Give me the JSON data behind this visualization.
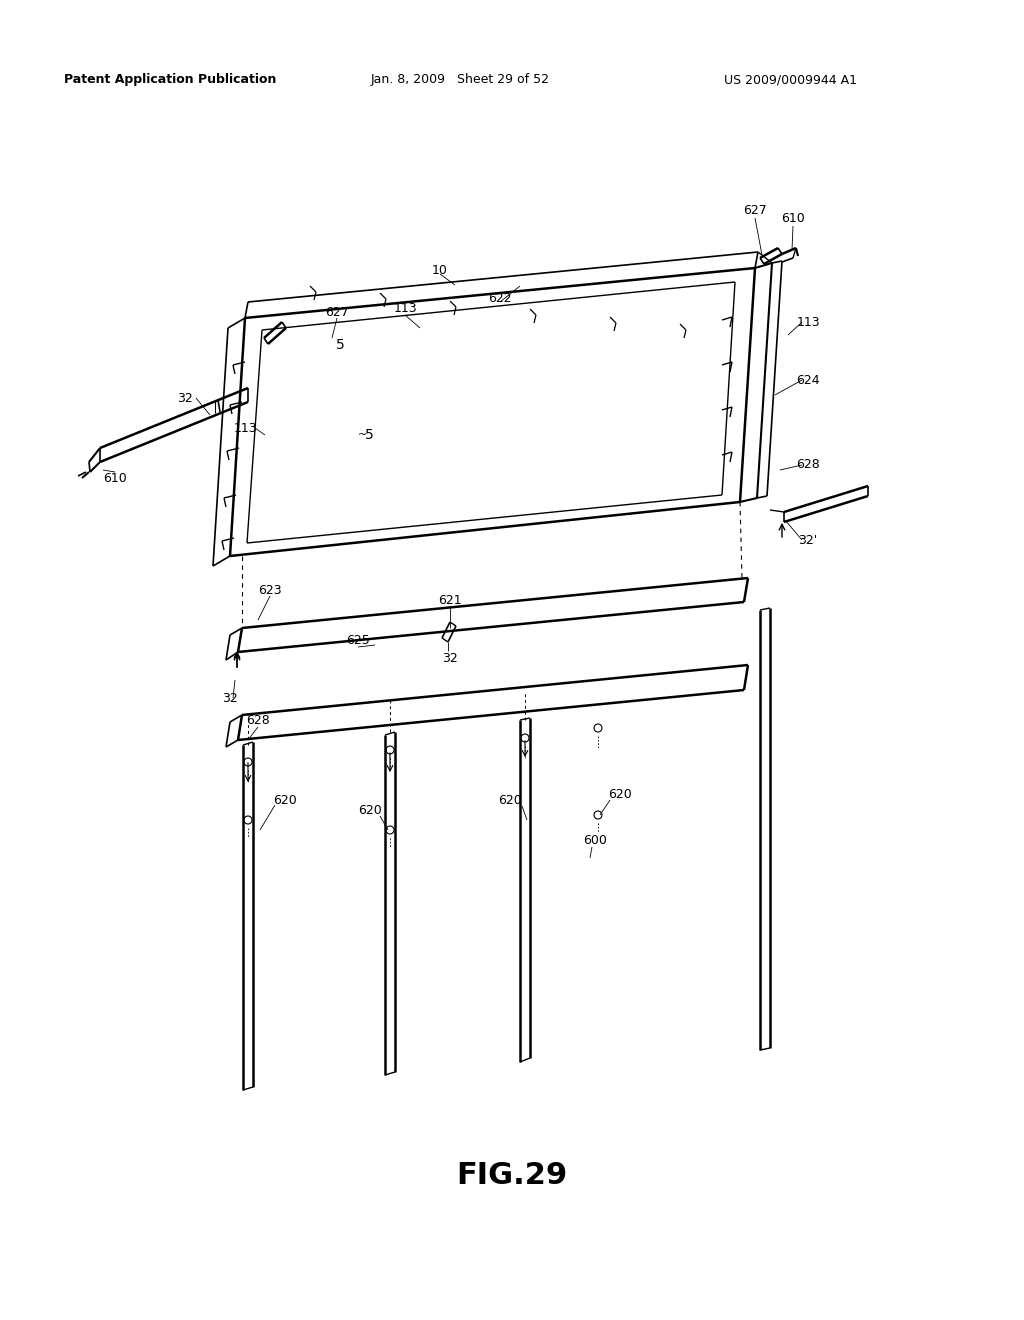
{
  "header_left": "Patent Application Publication",
  "header_mid": "Jan. 8, 2009   Sheet 29 of 52",
  "header_right": "US 2009/0009944 A1",
  "figure_label": "FIG.29",
  "bg": "#ffffff",
  "lc": "#000000"
}
